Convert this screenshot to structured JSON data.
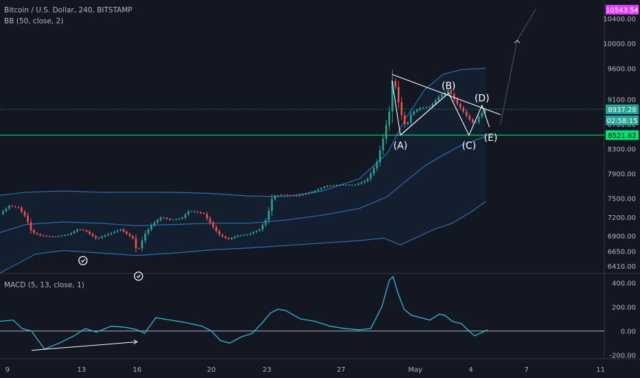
{
  "header": {
    "title": "Bitcoin / U.S. Dollar, 240, BITSTAMP",
    "indicator": "BB (50, close, 2)",
    "macd_label": "MACD (5, 13, close, 1)"
  },
  "colors": {
    "background": "#131722",
    "up": "#26a69a",
    "down": "#ef5350",
    "bb_line": "#2962ff",
    "green_level": "#00e676",
    "macd_line": "#2ebcd9",
    "pattern_line": "#ffffff"
  },
  "chart_data": [
    {
      "type": "candlestick",
      "title": "Bitcoin / U.S. Dollar, 240, BITSTAMP",
      "ylim": [
        6300,
        10700
      ],
      "y_ticks": [
        6410,
        6650,
        6900,
        7200,
        7500,
        7900,
        8300,
        8700,
        9100,
        9600,
        10000,
        10400
      ],
      "y_tick_labels": [
        "6410.00",
        "6650.00",
        "6900.00",
        "7200.00",
        "7500.00",
        "7900.00",
        "8300.00",
        "8700.00",
        "9100.00",
        "9600.00",
        "10000.00",
        "10400.00"
      ],
      "x_tick_labels": [
        "9",
        "13",
        "16",
        "20",
        "23",
        "27",
        "May",
        "4",
        "7",
        "11"
      ],
      "x_tick_days": [
        9,
        13,
        16,
        20,
        23,
        27,
        31,
        34,
        37,
        41
      ],
      "x_range_days": [
        8.6,
        41.2
      ],
      "price_tags": [
        {
          "label": "10543.54",
          "value": 10543.54,
          "color": "#e040fb"
        },
        {
          "label": "8937.28",
          "value": 8937.28,
          "color": "#26a69a"
        },
        {
          "label": "02:58:15",
          "value": 8760,
          "color": "#26a69a"
        },
        {
          "label": "8521.62",
          "value": 8521.62,
          "color": "#00e676"
        }
      ],
      "horizontal_levels": [
        {
          "value": 8521.62,
          "style": "solid",
          "color": "#00e676"
        },
        {
          "value": 8937.28,
          "style": "dotted",
          "color": "#26a69a"
        }
      ],
      "series": [
        {
          "name": "Price",
          "days": [
            8.6,
            9.1,
            9.6,
            10.0,
            10.3,
            10.8,
            11.5,
            12.3,
            12.8,
            13.2,
            13.8,
            14.4,
            15.1,
            15.8,
            16.0,
            16.4,
            16.8,
            17.3,
            17.8,
            18.4,
            18.8,
            19.2,
            19.6,
            20.0,
            20.4,
            20.9,
            21.4,
            22.0,
            22.6,
            23.0,
            23.3,
            23.8,
            24.6,
            25.4,
            26.2,
            27.0,
            27.8,
            28.4,
            28.9,
            29.3,
            29.6,
            29.75,
            29.9,
            30.1,
            30.3,
            30.5,
            30.8,
            31.3,
            31.8,
            32.3,
            32.8,
            33.2,
            33.6,
            33.9,
            34.2,
            34.5,
            34.8
          ],
          "values": [
            7250,
            7380,
            7350,
            7200,
            6960,
            6900,
            6880,
            6920,
            7000,
            6980,
            6850,
            6920,
            7000,
            6850,
            6620,
            6920,
            7080,
            7200,
            7150,
            7180,
            7300,
            7280,
            7250,
            7080,
            6920,
            6840,
            6900,
            6920,
            7000,
            7180,
            7530,
            7560,
            7540,
            7600,
            7700,
            7720,
            7720,
            7800,
            8050,
            8500,
            8900,
            9400,
            9350,
            9050,
            8800,
            8650,
            8880,
            8960,
            8980,
            9150,
            9250,
            9050,
            8900,
            8780,
            8700,
            8850,
            8937
          ]
        },
        {
          "name": "BB upper",
          "days": [
            8.6,
            10.0,
            12.0,
            14.0,
            16.0,
            18.0,
            20.0,
            22.0,
            24.0,
            26.0,
            28.0,
            29.5,
            30.5,
            31.5,
            32.5,
            33.5,
            34.8
          ],
          "values": [
            7550,
            7600,
            7620,
            7600,
            7600,
            7600,
            7580,
            7540,
            7530,
            7620,
            7820,
            8230,
            8800,
            9250,
            9500,
            9580,
            9600
          ]
        },
        {
          "name": "BB basis",
          "days": [
            8.6,
            10.0,
            12.0,
            14.0,
            16.0,
            18.0,
            20.0,
            22.0,
            24.0,
            26.0,
            28.0,
            29.5,
            30.5,
            31.5,
            32.5,
            33.5,
            34.8
          ],
          "values": [
            6950,
            7080,
            7120,
            7100,
            7060,
            7080,
            7100,
            7100,
            7150,
            7230,
            7340,
            7530,
            7780,
            8020,
            8200,
            8360,
            8500
          ]
        },
        {
          "name": "BB lower",
          "days": [
            8.6,
            9.5,
            10.5,
            12.0,
            14.0,
            16.0,
            18.0,
            20.0,
            22.0,
            24.0,
            26.0,
            28.0,
            29.3,
            29.8,
            30.2,
            31.0,
            32.0,
            33.0,
            34.0,
            34.8
          ],
          "values": [
            6300,
            6440,
            6600,
            6660,
            6620,
            6580,
            6620,
            6670,
            6700,
            6740,
            6780,
            6820,
            6860,
            6800,
            6750,
            6860,
            7000,
            7100,
            7280,
            7450
          ]
        }
      ],
      "pattern_points": [
        {
          "label": "(A)",
          "day": 30.2,
          "value": 8520
        },
        {
          "label": "(B)",
          "day": 32.8,
          "value": 9200
        },
        {
          "label": "(C)",
          "day": 33.9,
          "value": 8520
        },
        {
          "label": "(D)",
          "day": 34.6,
          "value": 9000
        },
        {
          "label": "(E)",
          "day": 35.0,
          "value": 8650
        }
      ],
      "projection_arrow": {
        "from_day": 35.6,
        "from_value": 8700,
        "to_day": 36.5,
        "to_value": 10050
      }
    },
    {
      "type": "line",
      "title": "MACD (5, 13, close, 1)",
      "ylim": [
        -230,
        470
      ],
      "y_ticks": [
        400,
        200,
        0,
        -200
      ],
      "y_tick_labels": [
        "400.00",
        "200.00",
        "0.00",
        "-200.00"
      ],
      "series": [
        {
          "name": "MACD",
          "days": [
            8.6,
            9.3,
            9.8,
            10.3,
            11.0,
            11.8,
            12.6,
            13.2,
            13.8,
            14.6,
            15.4,
            16.0,
            16.4,
            17.0,
            17.8,
            18.6,
            19.5,
            20.0,
            20.5,
            21.0,
            21.6,
            22.2,
            22.7,
            23.2,
            23.6,
            24.0,
            24.8,
            25.6,
            26.4,
            27.2,
            28.0,
            28.6,
            29.2,
            29.6,
            29.8,
            30.1,
            30.4,
            30.8,
            31.3,
            31.8,
            32.3,
            32.6,
            33.0,
            33.5,
            33.9,
            34.2,
            34.5,
            34.9
          ],
          "values": [
            80,
            90,
            20,
            0,
            -150,
            -100,
            -40,
            20,
            -10,
            40,
            30,
            10,
            -20,
            110,
            90,
            70,
            40,
            0,
            -80,
            -100,
            -50,
            -20,
            60,
            150,
            180,
            170,
            100,
            80,
            40,
            20,
            10,
            20,
            200,
            420,
            450,
            300,
            180,
            130,
            110,
            90,
            140,
            130,
            80,
            60,
            0,
            -40,
            -20,
            10
          ]
        }
      ],
      "zero_line": 0,
      "divergence_arrow": {
        "from_day": 10.3,
        "from_value": -160,
        "to_day": 16.0,
        "to_value": -90
      }
    }
  ]
}
